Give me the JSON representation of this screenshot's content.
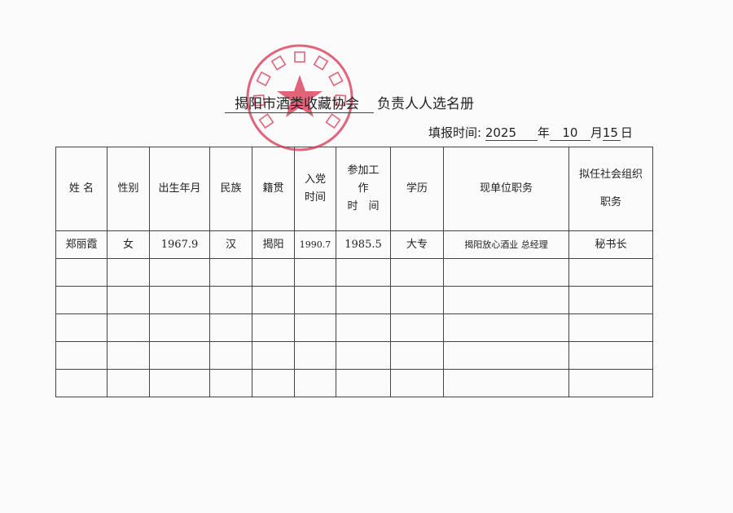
{
  "document": {
    "title_org": "揭阳市酒类收藏协会",
    "title_suffix": "负责人人选名册",
    "date_label": "填报时间:",
    "year": "2025",
    "year_unit": "年",
    "month": "10",
    "month_unit": "月",
    "day": "15",
    "day_unit": "日"
  },
  "stamp": {
    "text": "揭阳市酒类收藏协会",
    "color": "#d9324f"
  },
  "table": {
    "headers": [
      "姓 名",
      "性别",
      "出生年月",
      "民族",
      "籍贯",
      "入党\n时间",
      "参加工\n作\n时　间",
      "学历",
      "现单位职务",
      "拟任社会组织\n职务"
    ],
    "rows": [
      [
        "郑丽霞",
        "女",
        "1967.9",
        "汉",
        "揭阳",
        "1990.7",
        "1985.5",
        "大专",
        "揭阳放心酒业 总经理",
        "秘书长"
      ],
      [
        "",
        "",
        "",
        "",
        "",
        "",
        "",
        "",
        "",
        ""
      ],
      [
        "",
        "",
        "",
        "",
        "",
        "",
        "",
        "",
        "",
        ""
      ],
      [
        "",
        "",
        "",
        "",
        "",
        "",
        "",
        "",
        "",
        ""
      ],
      [
        "",
        "",
        "",
        "",
        "",
        "",
        "",
        "",
        "",
        ""
      ],
      [
        "",
        "",
        "",
        "",
        "",
        "",
        "",
        "",
        "",
        ""
      ]
    ]
  }
}
